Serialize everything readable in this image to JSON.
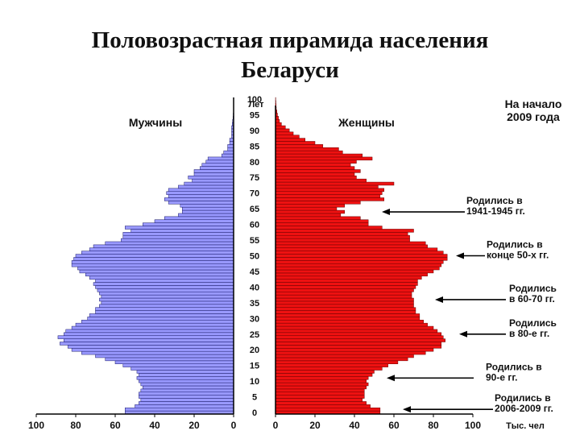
{
  "slide": {
    "title_line1": "Половозрастная пирамида населения",
    "title_line2": "Беларуси"
  },
  "chart_data": {
    "type": "bar",
    "orientation": "horizontal-pyramid",
    "title": "",
    "corner_note": "На начало 2009 года",
    "series": [
      {
        "name": "Мужчины",
        "color": "#9999ff",
        "side": "left"
      },
      {
        "name": "Женщины",
        "color": "#ee1111",
        "side": "right"
      }
    ],
    "age_axis": {
      "label": "Лет",
      "ticks": [
        "0",
        "5",
        "10",
        "15",
        "20",
        "25",
        "30",
        "35",
        "40",
        "45",
        "50",
        "55",
        "60",
        "65",
        "70",
        "75",
        "80",
        "85",
        "90",
        "95",
        "100"
      ]
    },
    "x_axis_male": {
      "ticks": [
        "100",
        "80",
        "60",
        "40",
        "20",
        "0"
      ]
    },
    "x_axis_female": {
      "ticks": [
        "0",
        "20",
        "40",
        "60",
        "80",
        "100"
      ],
      "unit": "Тыс. чел"
    },
    "xlim": [
      0,
      100
    ],
    "age_groups": "single years 0-100",
    "male": [
      55,
      55,
      50,
      48,
      47,
      48,
      48,
      47,
      46,
      47,
      48,
      49,
      48,
      49,
      52,
      56,
      60,
      65,
      70,
      77,
      82,
      84,
      88,
      86,
      89,
      86,
      85,
      82,
      80,
      77,
      74,
      73,
      70,
      70,
      68,
      67,
      68,
      67,
      68,
      69,
      70,
      71,
      70,
      73,
      75,
      78,
      79,
      82,
      82,
      81,
      80,
      77,
      73,
      71,
      65,
      57,
      56,
      56,
      52,
      55,
      46,
      40,
      35,
      28,
      26,
      26,
      27,
      33,
      35,
      33,
      34,
      33,
      28,
      25,
      21,
      23,
      20,
      20,
      17,
      16,
      14,
      13,
      6,
      5,
      3,
      3,
      2,
      2,
      1,
      1,
      1,
      1,
      0.7,
      0.5,
      0.3,
      0.2,
      0.1,
      0.1,
      0.05,
      0.02,
      0.01
    ],
    "female": [
      53,
      53,
      48,
      46,
      44,
      45,
      45,
      45,
      46,
      47,
      46,
      47,
      49,
      50,
      54,
      57,
      62,
      67,
      70,
      76,
      80,
      84,
      84,
      86,
      85,
      84,
      82,
      80,
      77,
      75,
      73,
      73,
      71,
      71,
      70,
      70,
      70,
      69,
      69,
      70,
      71,
      72,
      72,
      74,
      77,
      80,
      83,
      84,
      85,
      87,
      87,
      85,
      82,
      77,
      76,
      68,
      68,
      67,
      70,
      54,
      47,
      47,
      43,
      33,
      35,
      31,
      35,
      43,
      55,
      53,
      54,
      55,
      52,
      60,
      46,
      41,
      40,
      43,
      40,
      38,
      41,
      49,
      44,
      34,
      32,
      24,
      20,
      15,
      12,
      9,
      7,
      5,
      3,
      2,
      1.5,
      1,
      0.7,
      0.4,
      0.3,
      0.2,
      0.1
    ],
    "annotations": [
      {
        "text_line1": "Родились в",
        "text_line2": "1941-1945 гг.",
        "age": 64
      },
      {
        "text_line1": "Родились в",
        "text_line2": "конце 50-х гг.",
        "age": 50
      },
      {
        "text_line1": "Родились",
        "text_line2": "в 60-70 гг.",
        "age": 36
      },
      {
        "text_line1": "Родились",
        "text_line2": "в 80-е гг.",
        "age": 25
      },
      {
        "text_line1": "Родились в",
        "text_line2": "90-е гг.",
        "age": 11
      },
      {
        "text_line1": "Родились в",
        "text_line2": "2006-2009 гг.",
        "age": 1
      }
    ]
  }
}
